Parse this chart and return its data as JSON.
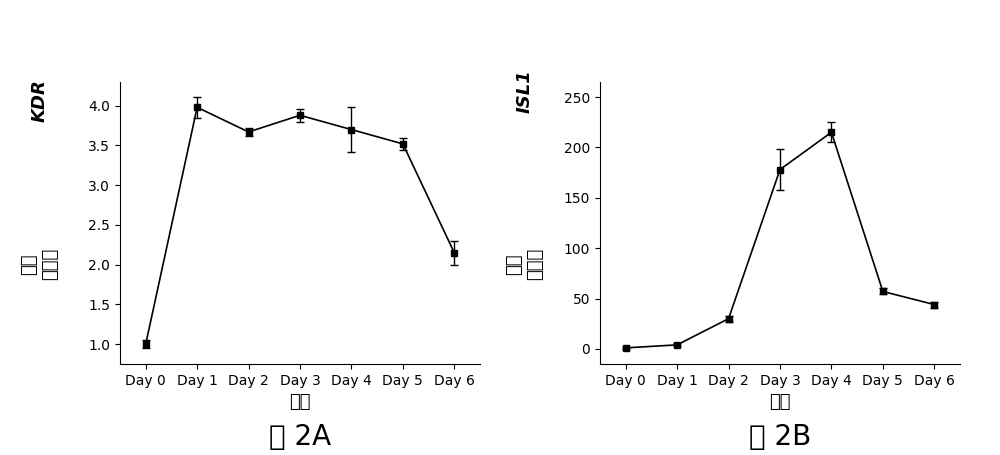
{
  "chart_A": {
    "x_labels": [
      "Day 0",
      "Day 1",
      "Day 2",
      "Day 3",
      "Day 4",
      "Day 5",
      "Day 6"
    ],
    "y_values": [
      1.0,
      3.98,
      3.67,
      3.88,
      3.7,
      3.52,
      2.15
    ],
    "y_errors": [
      0.05,
      0.13,
      0.05,
      0.08,
      0.28,
      0.08,
      0.15
    ],
    "ylabel_italic": "KDR",
    "ylabel_chinese": "相对\n表达量",
    "xlabel": "时间",
    "caption": "图 2A",
    "ylim": [
      0.75,
      4.3
    ],
    "yticks": [
      1.0,
      1.5,
      2.0,
      2.5,
      3.0,
      3.5,
      4.0
    ]
  },
  "chart_B": {
    "x_labels": [
      "Day 0",
      "Day 1",
      "Day 2",
      "Day 3",
      "Day 4",
      "Day 5",
      "Day 6"
    ],
    "y_values": [
      1.0,
      4.0,
      30.0,
      178.0,
      215.0,
      57.0,
      44.0
    ],
    "y_errors": [
      1.0,
      1.5,
      3.0,
      20.0,
      10.0,
      3.0,
      3.0
    ],
    "ylabel_italic": "ISL1",
    "ylabel_chinese": "相对\n表达量",
    "xlabel": "时间",
    "caption": "图 2B",
    "ylim": [
      -15,
      265
    ],
    "yticks": [
      0,
      50,
      100,
      150,
      200,
      250
    ]
  },
  "line_color": "#000000",
  "marker": "s",
  "markersize": 5,
  "capsize": 3,
  "figure_bg": "#ffffff",
  "font_color": "#000000",
  "caption_fontsize": 20,
  "axis_label_fontsize": 13,
  "tick_fontsize": 10
}
